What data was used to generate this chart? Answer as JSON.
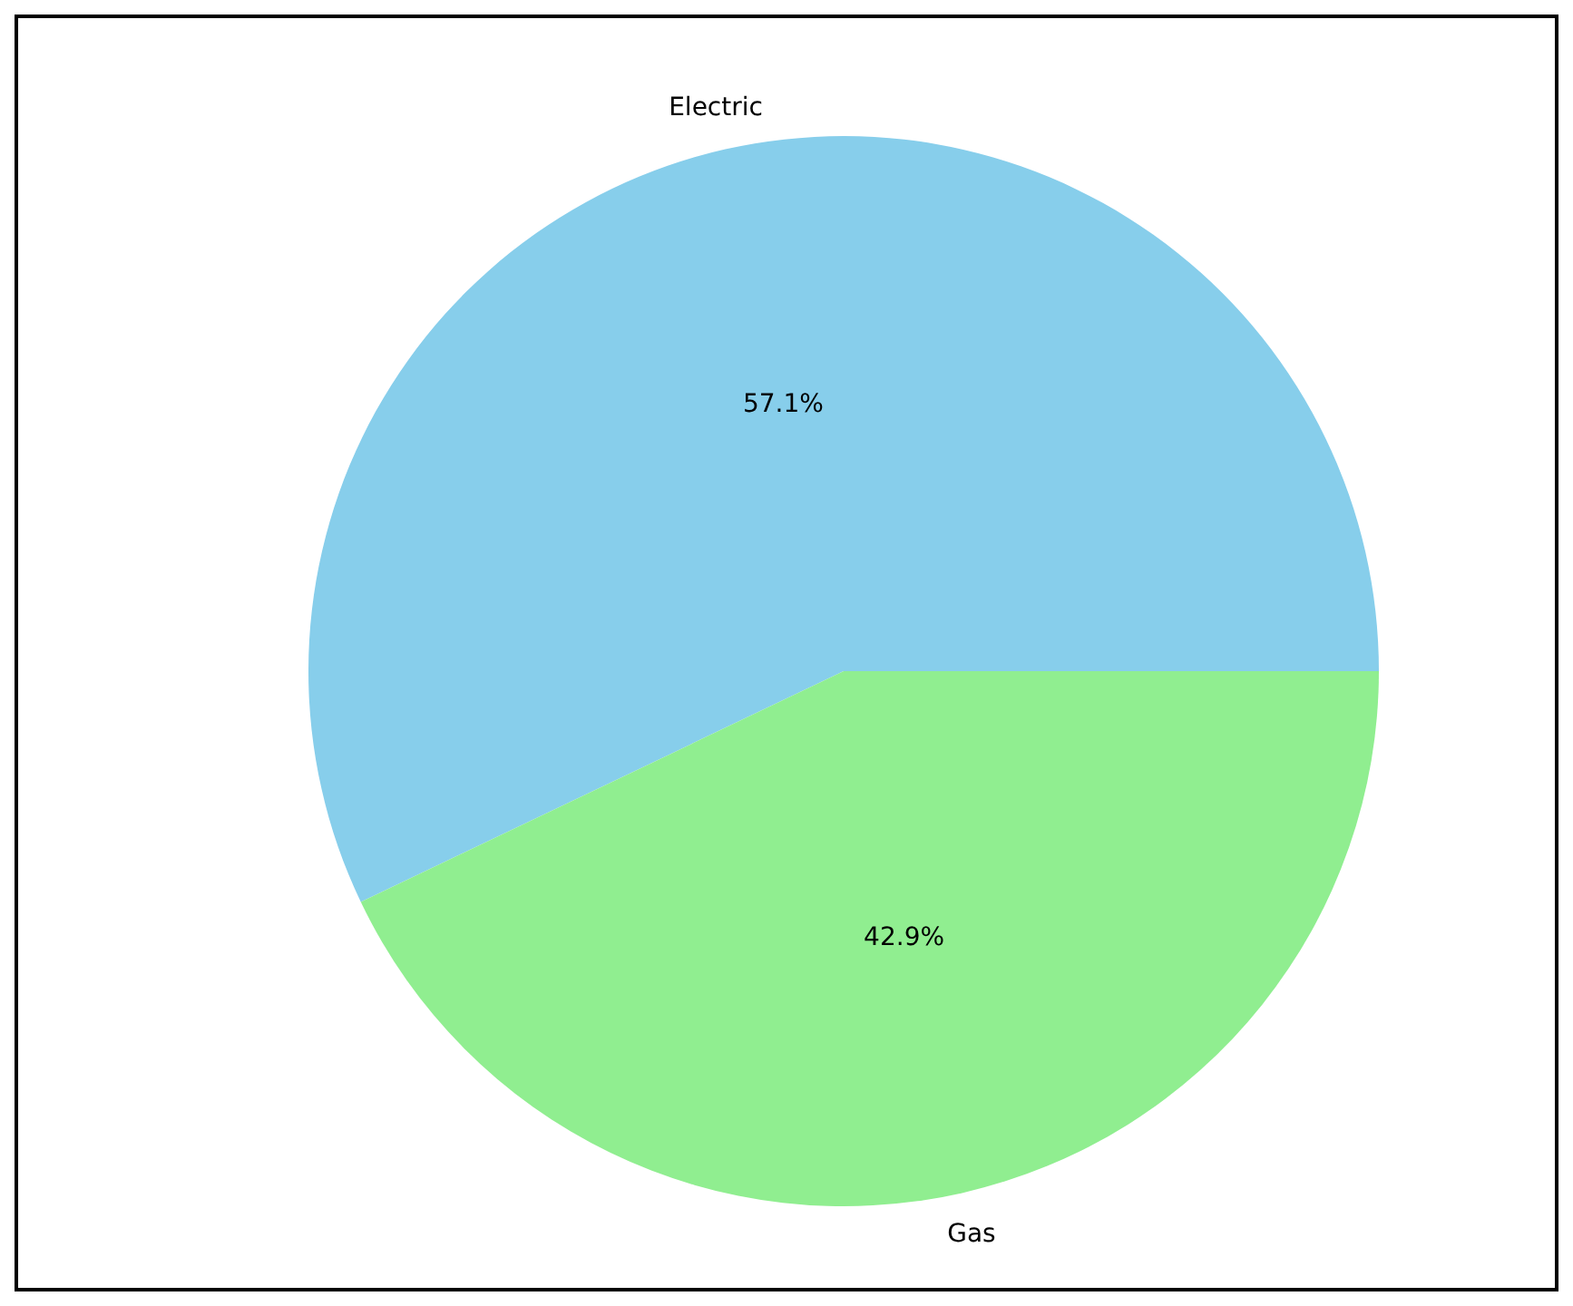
{
  "chart_data": {
    "type": "pie",
    "categories": [
      "Electric",
      "Gas"
    ],
    "values": [
      57.1,
      42.9
    ],
    "colors": [
      "#87ceeb",
      "#90ee90"
    ],
    "value_labels": [
      "57.1%",
      "42.9%"
    ],
    "legend": false
  }
}
